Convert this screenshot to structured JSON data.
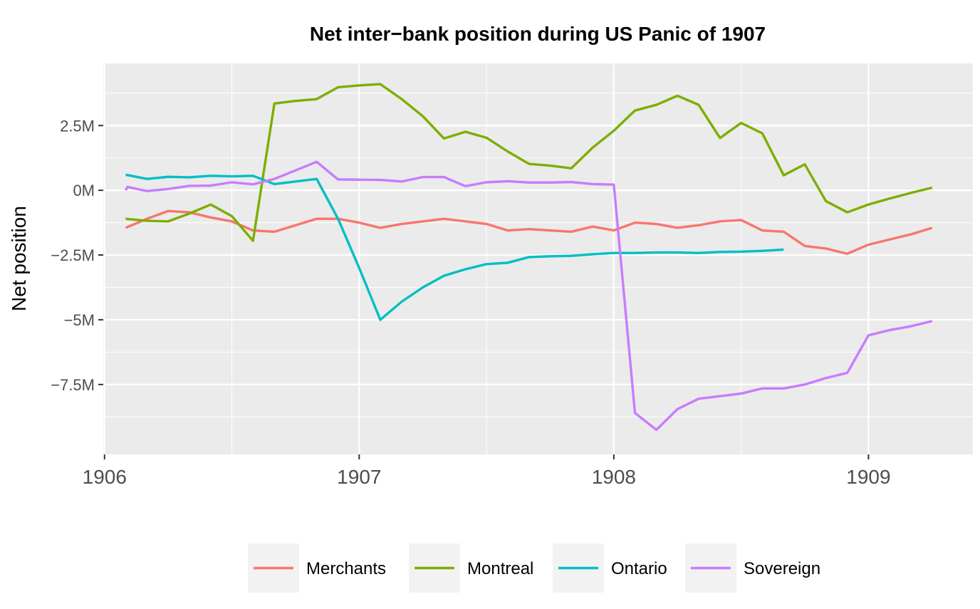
{
  "chart_data": {
    "type": "line",
    "title": "Net inter−bank position during US Panic of 1907",
    "xlabel": "",
    "ylabel": "Net position",
    "xlim": [
      1905.995,
      1909.41
    ],
    "ylim": [
      -10200000,
      4900000
    ],
    "x_ticks": [
      1906,
      1907,
      1908,
      1909
    ],
    "x_tick_labels": [
      "1906",
      "1907",
      "1908",
      "1909"
    ],
    "y_ticks": [
      -7500000,
      -5000000,
      -2500000,
      0,
      2500000
    ],
    "y_tick_labels": [
      "−7.5M",
      "−5M",
      "−2.5M",
      "0M",
      "2.5M"
    ],
    "grid": true,
    "legend_position": "bottom",
    "series": [
      {
        "name": "Merchants",
        "color": "#F8766D",
        "x": [
          1906.083,
          1906.167,
          1906.25,
          1906.333,
          1906.417,
          1906.5,
          1906.583,
          1906.667,
          1906.75,
          1906.833,
          1906.917,
          1907.0,
          1907.083,
          1907.167,
          1907.25,
          1907.333,
          1907.417,
          1907.5,
          1907.583,
          1907.667,
          1907.75,
          1907.833,
          1907.917,
          1908.0,
          1908.083,
          1908.167,
          1908.25,
          1908.333,
          1908.417,
          1908.5,
          1908.583,
          1908.667,
          1908.75,
          1908.833,
          1908.917,
          1909.0,
          1909.083,
          1909.167,
          1909.25
        ],
        "values": [
          -1450000,
          -1100000,
          -800000,
          -850000,
          -1050000,
          -1200000,
          -1550000,
          -1600000,
          -1350000,
          -1100000,
          -1100000,
          -1250000,
          -1450000,
          -1300000,
          -1200000,
          -1100000,
          -1200000,
          -1300000,
          -1550000,
          -1500000,
          -1550000,
          -1600000,
          -1400000,
          -1550000,
          -1250000,
          -1300000,
          -1450000,
          -1350000,
          -1200000,
          -1150000,
          -1550000,
          -1600000,
          -2150000,
          -2250000,
          -2450000,
          -2100000,
          -1900000,
          -1700000,
          -1450000
        ]
      },
      {
        "name": "Montreal",
        "color": "#7CAE00",
        "x": [
          1906.083,
          1906.167,
          1906.25,
          1906.333,
          1906.417,
          1906.5,
          1906.583,
          1906.667,
          1906.75,
          1906.833,
          1906.917,
          1907.0,
          1907.083,
          1907.167,
          1907.25,
          1907.333,
          1907.417,
          1907.5,
          1907.583,
          1907.667,
          1907.75,
          1907.833,
          1907.917,
          1908.0,
          1908.083,
          1908.167,
          1908.25,
          1908.333,
          1908.417,
          1908.5,
          1908.583,
          1908.667,
          1908.75,
          1908.833,
          1908.917,
          1909.0,
          1909.083,
          1909.167,
          1909.25
        ],
        "values": [
          -1100000,
          -1180000,
          -1200000,
          -900000,
          -550000,
          -1000000,
          -1950000,
          3350000,
          3450000,
          3520000,
          3980000,
          4050000,
          4100000,
          3520000,
          2860000,
          2000000,
          2260000,
          2030000,
          1500000,
          1020000,
          950000,
          850000,
          1650000,
          2300000,
          3080000,
          3300000,
          3650000,
          3300000,
          2020000,
          2600000,
          2200000,
          580000,
          1000000,
          -420000,
          -850000,
          -550000,
          -320000,
          -100000,
          100000
        ]
      },
      {
        "name": "Ontario",
        "color": "#00BFC4",
        "x": [
          1906.083,
          1906.167,
          1906.25,
          1906.333,
          1906.417,
          1906.5,
          1906.583,
          1906.667,
          1906.75,
          1906.833,
          1906.917,
          1907.0,
          1907.083,
          1907.167,
          1907.25,
          1907.333,
          1907.417,
          1907.5,
          1907.583,
          1907.667,
          1907.75,
          1907.833,
          1907.917,
          1908.0,
          1908.083,
          1908.167,
          1908.25,
          1908.333,
          1908.417,
          1908.5,
          1908.583,
          1908.667
        ],
        "values": [
          600000,
          440000,
          520000,
          500000,
          560000,
          540000,
          560000,
          240000,
          340000,
          440000,
          -1100000,
          -3000000,
          -5000000,
          -4300000,
          -3750000,
          -3300000,
          -3050000,
          -2850000,
          -2800000,
          -2580000,
          -2550000,
          -2530000,
          -2470000,
          -2420000,
          -2420000,
          -2400000,
          -2400000,
          -2420000,
          -2380000,
          -2370000,
          -2340000,
          -2290000
        ]
      },
      {
        "name": "Sovereign",
        "color": "#C77CFF",
        "x": [
          1906.083,
          1906.09,
          1906.167,
          1906.25,
          1906.333,
          1906.417,
          1906.5,
          1906.583,
          1906.667,
          1906.75,
          1906.833,
          1906.917,
          1907.0,
          1907.083,
          1907.167,
          1907.25,
          1907.333,
          1907.417,
          1907.5,
          1907.583,
          1907.667,
          1907.75,
          1907.833,
          1907.917,
          1908.0,
          1908.083,
          1908.167,
          1908.25,
          1908.333,
          1908.417,
          1908.5,
          1908.583,
          1908.667,
          1908.75,
          1908.833,
          1908.917,
          1909.0,
          1909.083,
          1909.167,
          1909.25
        ],
        "values": [
          0,
          130000,
          -30000,
          50000,
          170000,
          180000,
          310000,
          230000,
          440000,
          770000,
          1100000,
          420000,
          410000,
          400000,
          340000,
          510000,
          510000,
          160000,
          310000,
          350000,
          300000,
          300000,
          320000,
          240000,
          220000,
          -8600000,
          -9250000,
          -8450000,
          -8050000,
          -7950000,
          -7850000,
          -7650000,
          -7650000,
          -7500000,
          -7250000,
          -7050000,
          -5600000,
          -5400000,
          -5250000,
          -5050000
        ]
      }
    ]
  }
}
